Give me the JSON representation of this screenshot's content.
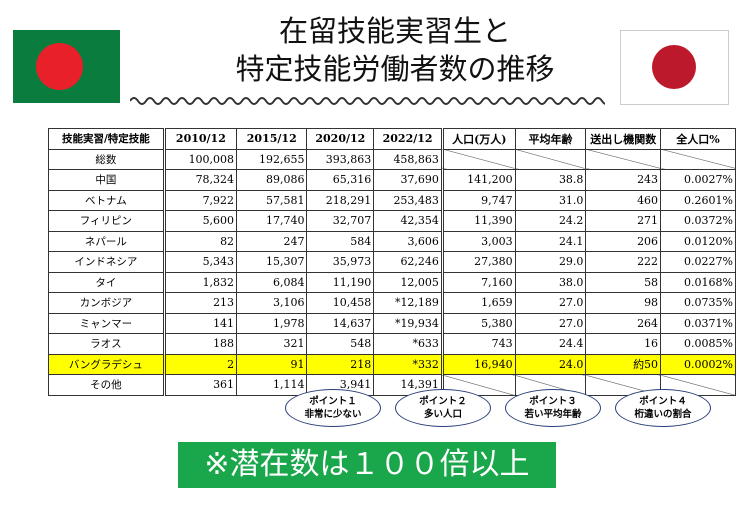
{
  "title": {
    "line1": "在留技能実習生と",
    "line2": "特定技能労働者数の推移"
  },
  "flags": {
    "left": "bangladesh-flag",
    "right": "japan-flag"
  },
  "table": {
    "headers": [
      "技能実習/特定技能",
      "2010/12",
      "2015/12",
      "2020/12",
      "2022/12",
      "人口(万人)",
      "平均年齢",
      "送出し機関数",
      "全人口%"
    ],
    "rows": [
      [
        "総数",
        "100,008",
        "192,655",
        "393,863",
        "458,863",
        "",
        "",
        "",
        ""
      ],
      [
        "中国",
        "78,324",
        "89,086",
        "65,316",
        "37,690",
        "141,200",
        "38.8",
        "243",
        "0.0027%"
      ],
      [
        "ベトナム",
        "7,922",
        "57,581",
        "218,291",
        "253,483",
        "9,747",
        "31.0",
        "460",
        "0.2601%"
      ],
      [
        "フィリピン",
        "5,600",
        "17,740",
        "32,707",
        "42,354",
        "11,390",
        "24.2",
        "271",
        "0.0372%"
      ],
      [
        "ネパール",
        "82",
        "247",
        "584",
        "3,606",
        "3,003",
        "24.1",
        "206",
        "0.0120%"
      ],
      [
        "インドネシア",
        "5,343",
        "15,307",
        "35,973",
        "62,246",
        "27,380",
        "29.0",
        "222",
        "0.0227%"
      ],
      [
        "タイ",
        "1,832",
        "6,084",
        "11,190",
        "12,005",
        "7,160",
        "38.0",
        "58",
        "0.0168%"
      ],
      [
        "カンボジア",
        "213",
        "3,106",
        "10,458",
        "*12,189",
        "1,659",
        "27.0",
        "98",
        "0.0735%"
      ],
      [
        "ミャンマー",
        "141",
        "1,978",
        "14,637",
        "*19,934",
        "5,380",
        "27.0",
        "264",
        "0.0371%"
      ],
      [
        "ラオス",
        "188",
        "321",
        "548",
        "*633",
        "743",
        "24.4",
        "16",
        "0.0085%"
      ],
      [
        "バングラデシュ",
        "2",
        "91",
        "218",
        "*332",
        "16,940",
        "24.0",
        "約50",
        "0.0002%"
      ],
      [
        "その他",
        "361",
        "1,114",
        "3,941",
        "14,391",
        "",
        "",
        "",
        ""
      ]
    ],
    "highlight_color": "#ffff00"
  },
  "points": [
    {
      "title": "ポイント１",
      "text": "非常に少ない"
    },
    {
      "title": "ポイント２",
      "text": "多い人口"
    },
    {
      "title": "ポイント３",
      "text": "若い平均年齢"
    },
    {
      "title": "ポイント４",
      "text": "桁違いの割合"
    }
  ],
  "banner": {
    "text": "※潜在数は１００倍以上",
    "color": "#1aa64a"
  }
}
